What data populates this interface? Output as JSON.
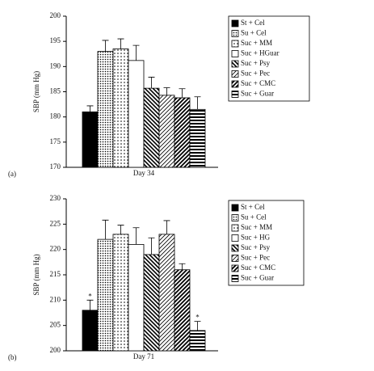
{
  "chart_data": [
    {
      "type": "bar",
      "ylabel": "SBP (mm Hg)",
      "panel_label": "(a)",
      "categories": [
        "Day 34"
      ],
      "ylim": [
        170,
        200
      ],
      "yticks": [
        170,
        175,
        180,
        185,
        190,
        195,
        200
      ],
      "series": [
        {
          "name": "St + Cel",
          "pattern": "solid",
          "values": [
            181
          ],
          "errors": [
            1.2
          ]
        },
        {
          "name": "Su + Cel",
          "pattern": "dots",
          "values": [
            193
          ],
          "errors": [
            2.2
          ]
        },
        {
          "name": "Suc + MM",
          "pattern": "sparse-dots",
          "values": [
            193.5
          ],
          "errors": [
            2.0
          ]
        },
        {
          "name": "Suc + HGuar",
          "pattern": "open",
          "values": [
            191.2
          ],
          "errors": [
            3.0
          ]
        },
        {
          "name": "Suc + Psy",
          "pattern": "back-hatch",
          "values": [
            185.7
          ],
          "errors": [
            2.2
          ]
        },
        {
          "name": "Suc + Pec",
          "pattern": "hatch",
          "values": [
            184.3
          ],
          "errors": [
            1.5
          ]
        },
        {
          "name": "Suc + CMC",
          "pattern": "dense-hatch",
          "values": [
            183.8
          ],
          "errors": [
            1.8
          ]
        },
        {
          "name": "Suc + Guar",
          "pattern": "hstripes",
          "values": [
            181.5
          ],
          "errors": [
            2.5
          ]
        }
      ]
    },
    {
      "type": "bar",
      "ylabel": "SBP (mm Hg)",
      "panel_label": "(b)",
      "categories": [
        "Day 71"
      ],
      "ylim": [
        200,
        230
      ],
      "yticks": [
        200,
        205,
        210,
        215,
        220,
        225,
        230
      ],
      "series": [
        {
          "name": "St + Cel",
          "pattern": "solid",
          "values": [
            208
          ],
          "errors": [
            2.0
          ],
          "annotation": "*"
        },
        {
          "name": "Su + Cel",
          "pattern": "dots",
          "values": [
            222
          ],
          "errors": [
            3.8
          ]
        },
        {
          "name": "Suc + MM",
          "pattern": "sparse-dots",
          "values": [
            223
          ],
          "errors": [
            1.8
          ]
        },
        {
          "name": "Suc + HG",
          "pattern": "open",
          "values": [
            221
          ],
          "errors": [
            3.3
          ]
        },
        {
          "name": "Suc + Psy",
          "pattern": "back-hatch",
          "values": [
            219
          ],
          "errors": [
            3.3
          ]
        },
        {
          "name": "Suc + Pec",
          "pattern": "hatch",
          "values": [
            223
          ],
          "errors": [
            2.7
          ]
        },
        {
          "name": "Suc + CMC",
          "pattern": "dense-hatch",
          "values": [
            216
          ],
          "errors": [
            1.2
          ]
        },
        {
          "name": "Suc + Guar",
          "pattern": "hstripes",
          "values": [
            204
          ],
          "errors": [
            1.8
          ],
          "annotation": "*"
        }
      ]
    }
  ]
}
